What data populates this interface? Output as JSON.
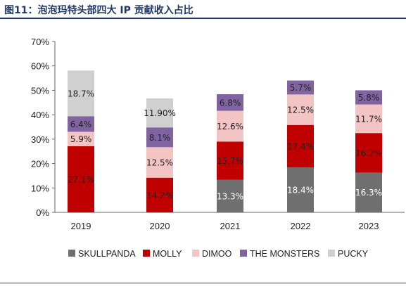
{
  "figure": {
    "title": "图11：泡泡玛特头部四大 IP 贡献收入占比"
  },
  "chart_data": {
    "type": "bar",
    "stacked": true,
    "categories": [
      "2019",
      "2020",
      "2021",
      "2022",
      "2023"
    ],
    "ylim": [
      0,
      70
    ],
    "yticks": [
      0,
      10,
      20,
      30,
      40,
      50,
      60,
      70
    ],
    "ytick_suffix": "%",
    "grid": false,
    "legend_position": "bottom",
    "series": [
      {
        "name": "SKULLPANDA",
        "color": "#6f6f6f",
        "label_color": "#ffffff",
        "values": [
          null,
          null,
          13.3,
          18.4,
          16.3
        ],
        "labels": [
          "",
          "",
          "13.3%",
          "18.4%",
          "16.3%"
        ]
      },
      {
        "name": "MOLLY",
        "color": "#c00000",
        "label_color": "#222222",
        "values": [
          27.1,
          14.2,
          15.7,
          17.4,
          16.2
        ],
        "labels": [
          "27.1%",
          "14.2%",
          "15.7%",
          "17.4%",
          "16.2%"
        ]
      },
      {
        "name": "DIMOO",
        "color": "#f2c4c4",
        "label_color": "#222222",
        "values": [
          5.9,
          12.5,
          12.6,
          12.5,
          11.7
        ],
        "labels": [
          "5.9%",
          "12.5%",
          "12.6%",
          "12.5%",
          "11.7%"
        ]
      },
      {
        "name": "THE MONSTERS",
        "color": "#8064a2",
        "label_color": "#222222",
        "values": [
          6.4,
          8.1,
          6.8,
          5.7,
          5.8
        ],
        "labels": [
          "6.4%",
          "8.1%",
          "6.8%",
          "5.7%",
          "5.8%"
        ]
      },
      {
        "name": "PUCKY",
        "color": "#d0d0d0",
        "label_color": "#222222",
        "values": [
          18.7,
          11.9,
          null,
          null,
          null
        ],
        "labels": [
          "18.7%",
          "11.90%",
          "",
          "",
          ""
        ]
      }
    ]
  }
}
